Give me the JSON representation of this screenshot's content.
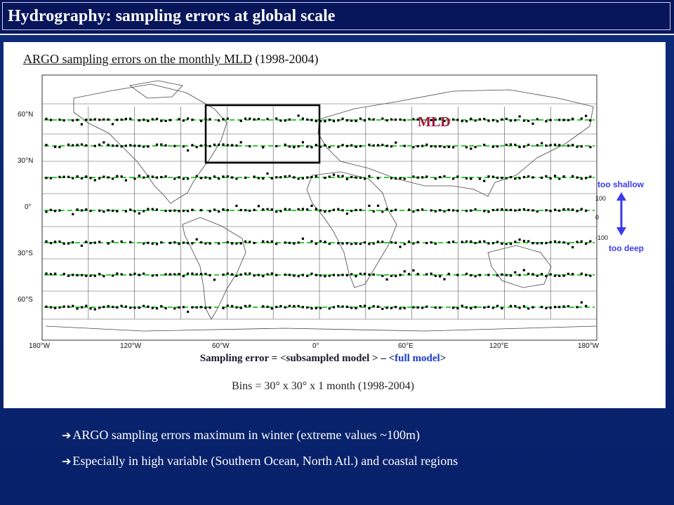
{
  "title": "Hydrography: sampling errors at global scale",
  "subtitle_underlined": "ARGO sampling errors on the monthly MLD",
  "subtitle_years": "(1998-2004)",
  "map_label": "MLD",
  "lat_labels": [
    "60°N",
    "30°N",
    "0°",
    "30°S",
    "60°S"
  ],
  "lon_labels": [
    "180°W",
    "120°W",
    "60°W",
    "0°",
    "60°E",
    "120°E",
    "180°W"
  ],
  "legend": {
    "top": "too shallow",
    "bottom": "too deep",
    "ticks": [
      "100",
      "0",
      "-100"
    ]
  },
  "caption_formula": {
    "prefix": "Sampling error = <subsampled model > – <",
    "highlight": "full model",
    "suffix": ">"
  },
  "caption_bins": "Bins = 30° x 30° x 1 month (1998-2004)",
  "bullets": [
    "ARGO sampling errors maximum in winter (extreme values ~100m)",
    "Especially in high variable (Southern Ocean, North Atl.) and coastal regions"
  ],
  "colors": {
    "background": "#0a2570",
    "grid_zero_line": "#33cc33",
    "data_points": "#000000",
    "highlight_box": "#000000",
    "legend_arrow": "#3a3aee"
  }
}
